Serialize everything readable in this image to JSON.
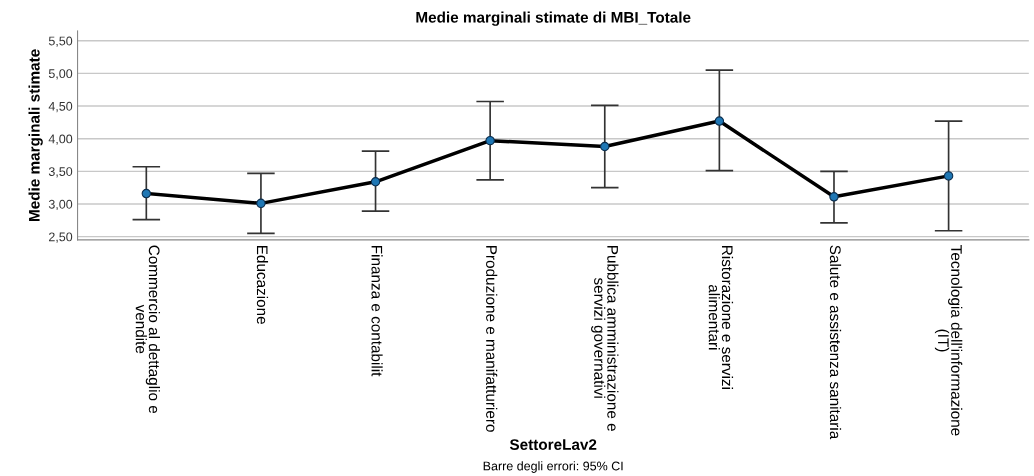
{
  "chart_data": {
    "type": "line",
    "title": "Medie marginali stimate di MBI_Totale",
    "xlabel": "SettoreLav2",
    "ylabel": "Medie marginali stimate",
    "categories": [
      "Commercio al dettaglio e\nvendite",
      "Educazione",
      "Finanza e contabilit",
      "Produzione e manifatturiero",
      "Pubblica amministrazione e\nservizi governativi",
      "Ristorazione e servizi\nalimentari",
      "Salute e assistenza sanitaria",
      "Tecnologia dell'informazione\n(IT)"
    ],
    "series": [
      {
        "color": "#000000",
        "values": [
          3.16,
          3.01,
          3.34,
          3.97,
          3.88,
          4.27,
          3.11,
          3.43
        ],
        "errors": [
          [
            2.76,
            3.57
          ],
          [
            2.55,
            3.47
          ],
          [
            2.89,
            3.81
          ],
          [
            3.37,
            4.57
          ],
          [
            3.25,
            4.51
          ],
          [
            3.51,
            5.05
          ],
          [
            2.71,
            3.5
          ],
          [
            2.59,
            4.27
          ]
        ]
      }
    ],
    "marker": "circle",
    "ylim": [
      2.45,
      5.65
    ],
    "yticks": [
      {
        "value": 2.5,
        "label": "2,50"
      },
      {
        "value": 3.0,
        "label": "3,00"
      },
      {
        "value": 3.5,
        "label": "3,50"
      },
      {
        "value": 4.0,
        "label": "4,00"
      },
      {
        "value": 4.5,
        "label": "4,50"
      },
      {
        "value": 5.0,
        "label": "5,00"
      },
      {
        "value": 5.5,
        "label": "5,50"
      }
    ],
    "grid": "y",
    "legend": false,
    "annotations": [
      "Barre degli errori: 95% CI"
    ]
  }
}
